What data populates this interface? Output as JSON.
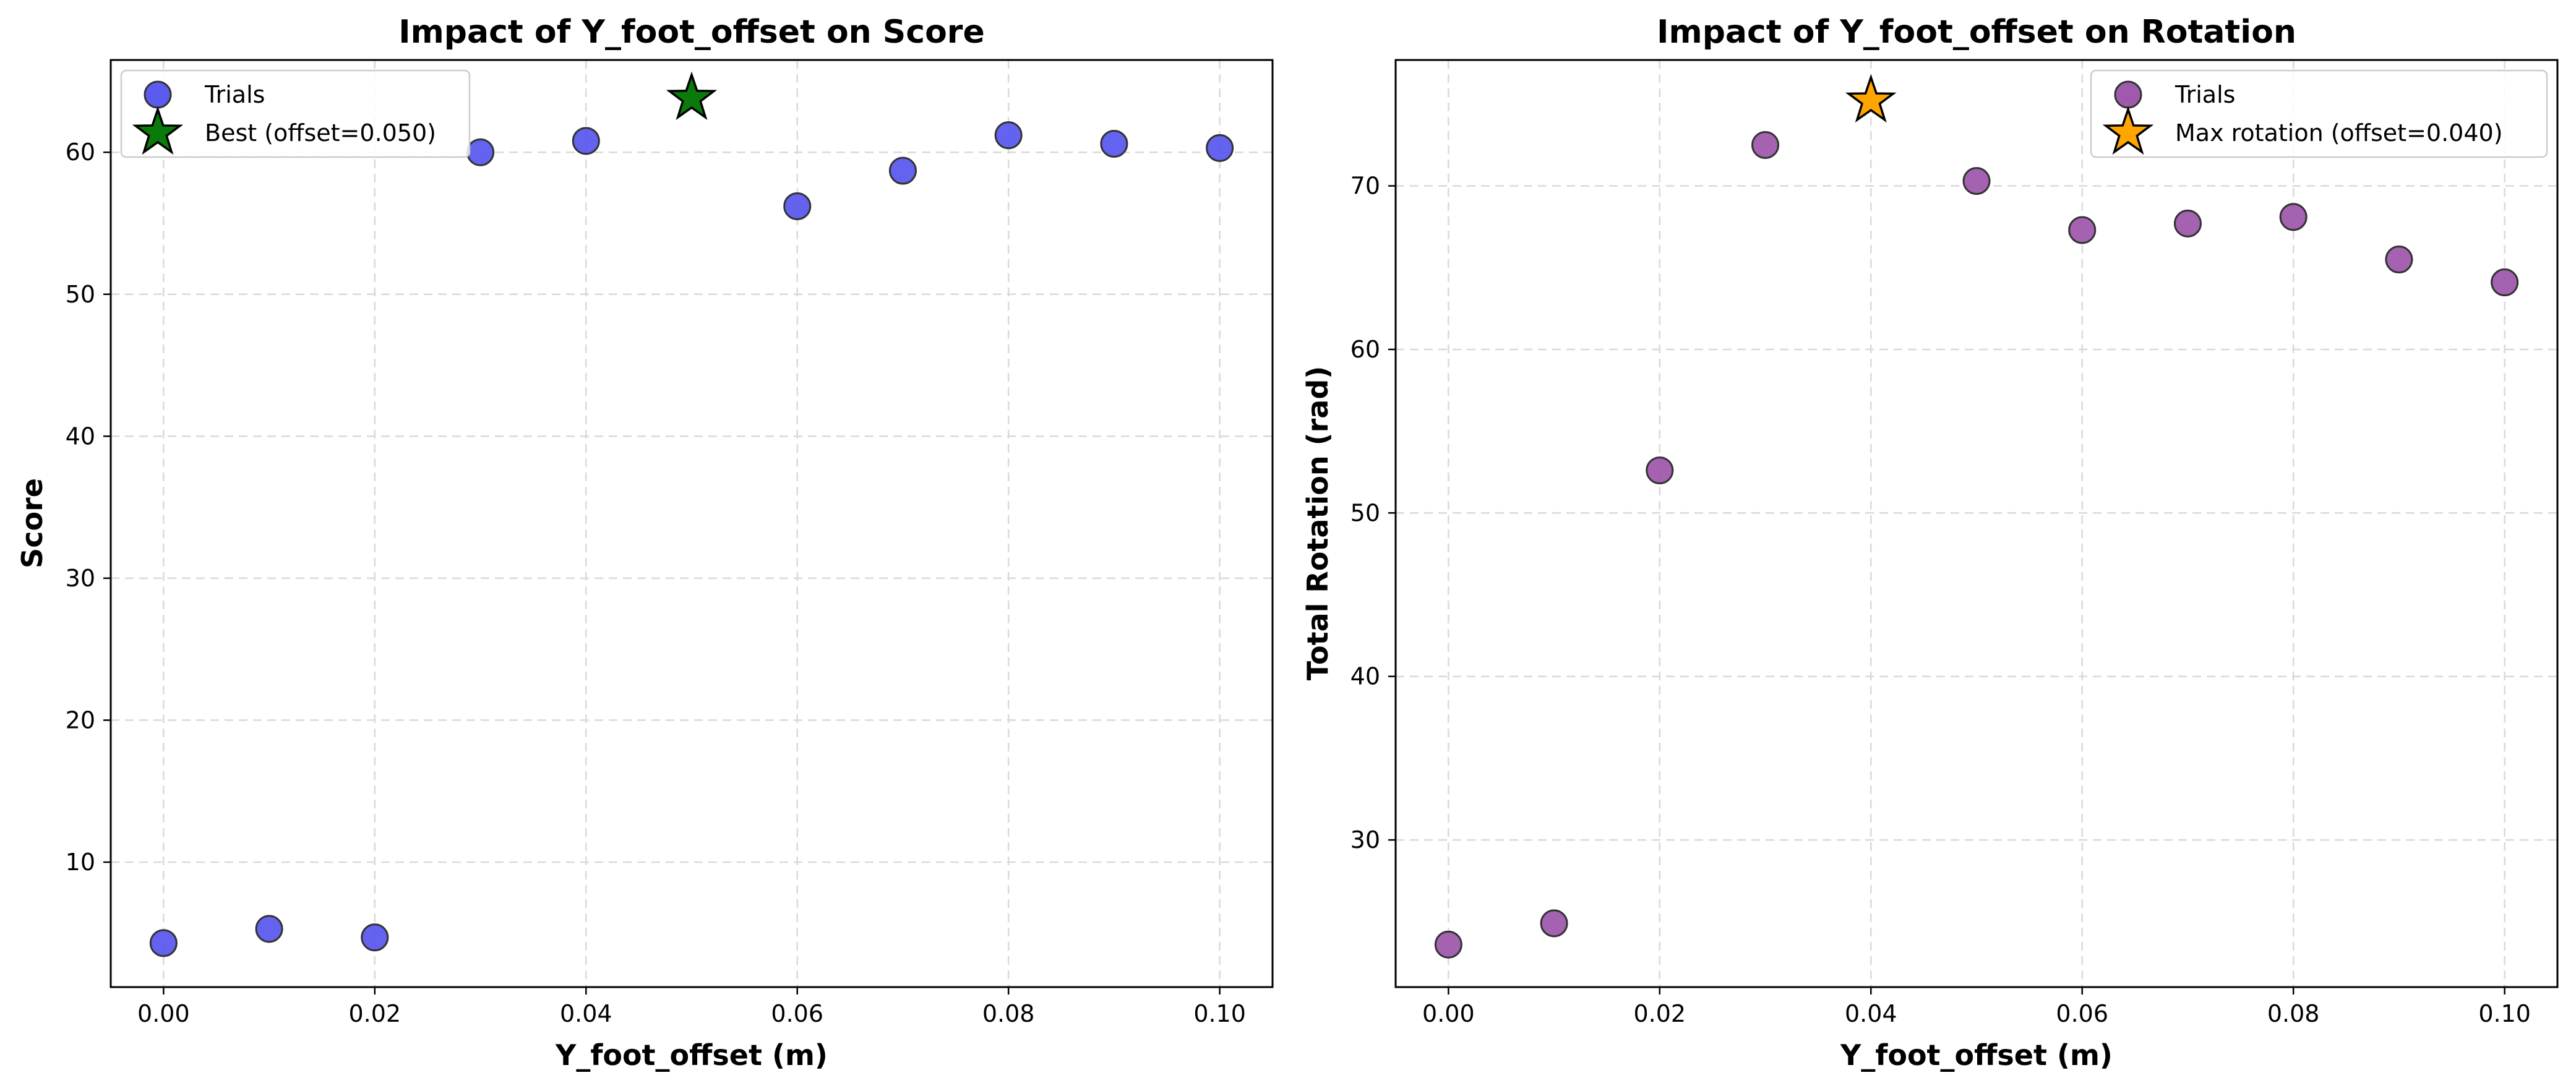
{
  "chart_data": [
    {
      "type": "scatter",
      "title": "Impact of Y_foot_offset on Score",
      "xlabel": "Y_foot_offset (m)",
      "ylabel": "Score",
      "xlim": [
        -0.005,
        0.105
      ],
      "ylim": [
        1.2,
        66.5
      ],
      "xticks": [
        0.0,
        0.02,
        0.04,
        0.06,
        0.08,
        0.1
      ],
      "xtick_labels": [
        "0.00",
        "0.02",
        "0.04",
        "0.06",
        "0.08",
        "0.10"
      ],
      "yticks": [
        10,
        20,
        30,
        40,
        50,
        60
      ],
      "ytick_labels": [
        "10",
        "20",
        "30",
        "40",
        "50",
        "60"
      ],
      "grid": true,
      "legend_position": "upper-left",
      "series": [
        {
          "name": "Trials",
          "marker": "circle",
          "color": "#5b5bef",
          "x": [
            0.0,
            0.01,
            0.02,
            0.03,
            0.04,
            0.06,
            0.07,
            0.08,
            0.09,
            0.1
          ],
          "y": [
            4.3,
            5.3,
            4.7,
            60.0,
            60.8,
            56.2,
            58.7,
            61.2,
            60.6,
            60.3
          ]
        },
        {
          "name": "Best (offset=0.050)",
          "marker": "star",
          "color": "#0a7a0a",
          "x": [
            0.05
          ],
          "y": [
            63.8
          ]
        }
      ]
    },
    {
      "type": "scatter",
      "title": "Impact of Y_foot_offset on Rotation",
      "xlabel": "Y_foot_offset (m)",
      "ylabel": "Total Rotation (rad)",
      "xlim": [
        -0.005,
        0.105
      ],
      "ylim": [
        21.0,
        77.7
      ],
      "xticks": [
        0.0,
        0.02,
        0.04,
        0.06,
        0.08,
        0.1
      ],
      "xtick_labels": [
        "0.00",
        "0.02",
        "0.04",
        "0.06",
        "0.08",
        "0.10"
      ],
      "yticks": [
        30,
        40,
        50,
        60,
        70
      ],
      "ytick_labels": [
        "30",
        "40",
        "50",
        "60",
        "70"
      ],
      "grid": true,
      "legend_position": "upper-right",
      "series": [
        {
          "name": "Trials",
          "marker": "circle",
          "color": "#a05aac",
          "x": [
            0.0,
            0.01,
            0.02,
            0.03,
            0.05,
            0.06,
            0.07,
            0.08,
            0.09,
            0.1
          ],
          "y": [
            23.6,
            24.9,
            52.6,
            72.5,
            70.3,
            67.3,
            67.7,
            68.1,
            65.5,
            64.1
          ]
        },
        {
          "name": "Max rotation (offset=0.040)",
          "marker": "star",
          "color": "#ffa500",
          "x": [
            0.04
          ],
          "y": [
            75.2
          ]
        }
      ]
    }
  ]
}
